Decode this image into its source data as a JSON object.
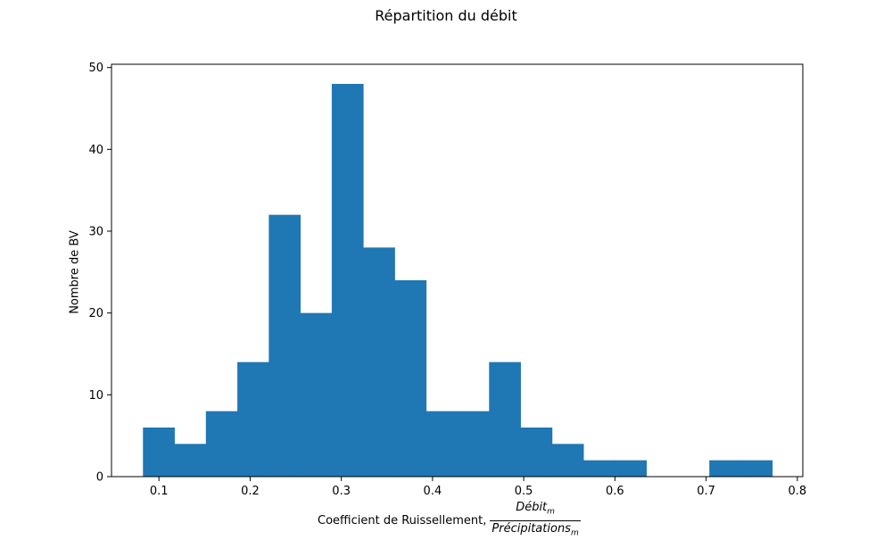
{
  "chart_data": {
    "type": "bar",
    "title": "Répartition du débit",
    "xlabel": {
      "text": "Coefficient de Ruissellement,",
      "numerator": "Débit",
      "numerator_sub": "m",
      "denominator": "Précipitations",
      "denominator_sub": "m"
    },
    "ylabel": "Nombre de BV",
    "xlim": [
      0.048,
      0.806
    ],
    "ylim": [
      0,
      50.4
    ],
    "xticks": [
      0.1,
      0.2,
      0.3,
      0.4,
      0.5,
      0.6,
      0.7,
      0.8
    ],
    "xtick_labels": [
      "0.1",
      "0.2",
      "0.3",
      "0.4",
      "0.5",
      "0.6",
      "0.7",
      "0.8"
    ],
    "yticks": [
      0,
      10,
      20,
      30,
      40,
      50
    ],
    "ytick_labels": [
      "0",
      "10",
      "20",
      "30",
      "40",
      "50"
    ],
    "bin_start": 0.0825,
    "bin_width": 0.0345,
    "values": [
      6,
      4,
      8,
      14,
      32,
      20,
      48,
      28,
      24,
      8,
      8,
      14,
      6,
      4,
      2,
      2,
      0,
      0,
      2,
      2
    ],
    "color": "#1f77b4",
    "grid": false
  }
}
